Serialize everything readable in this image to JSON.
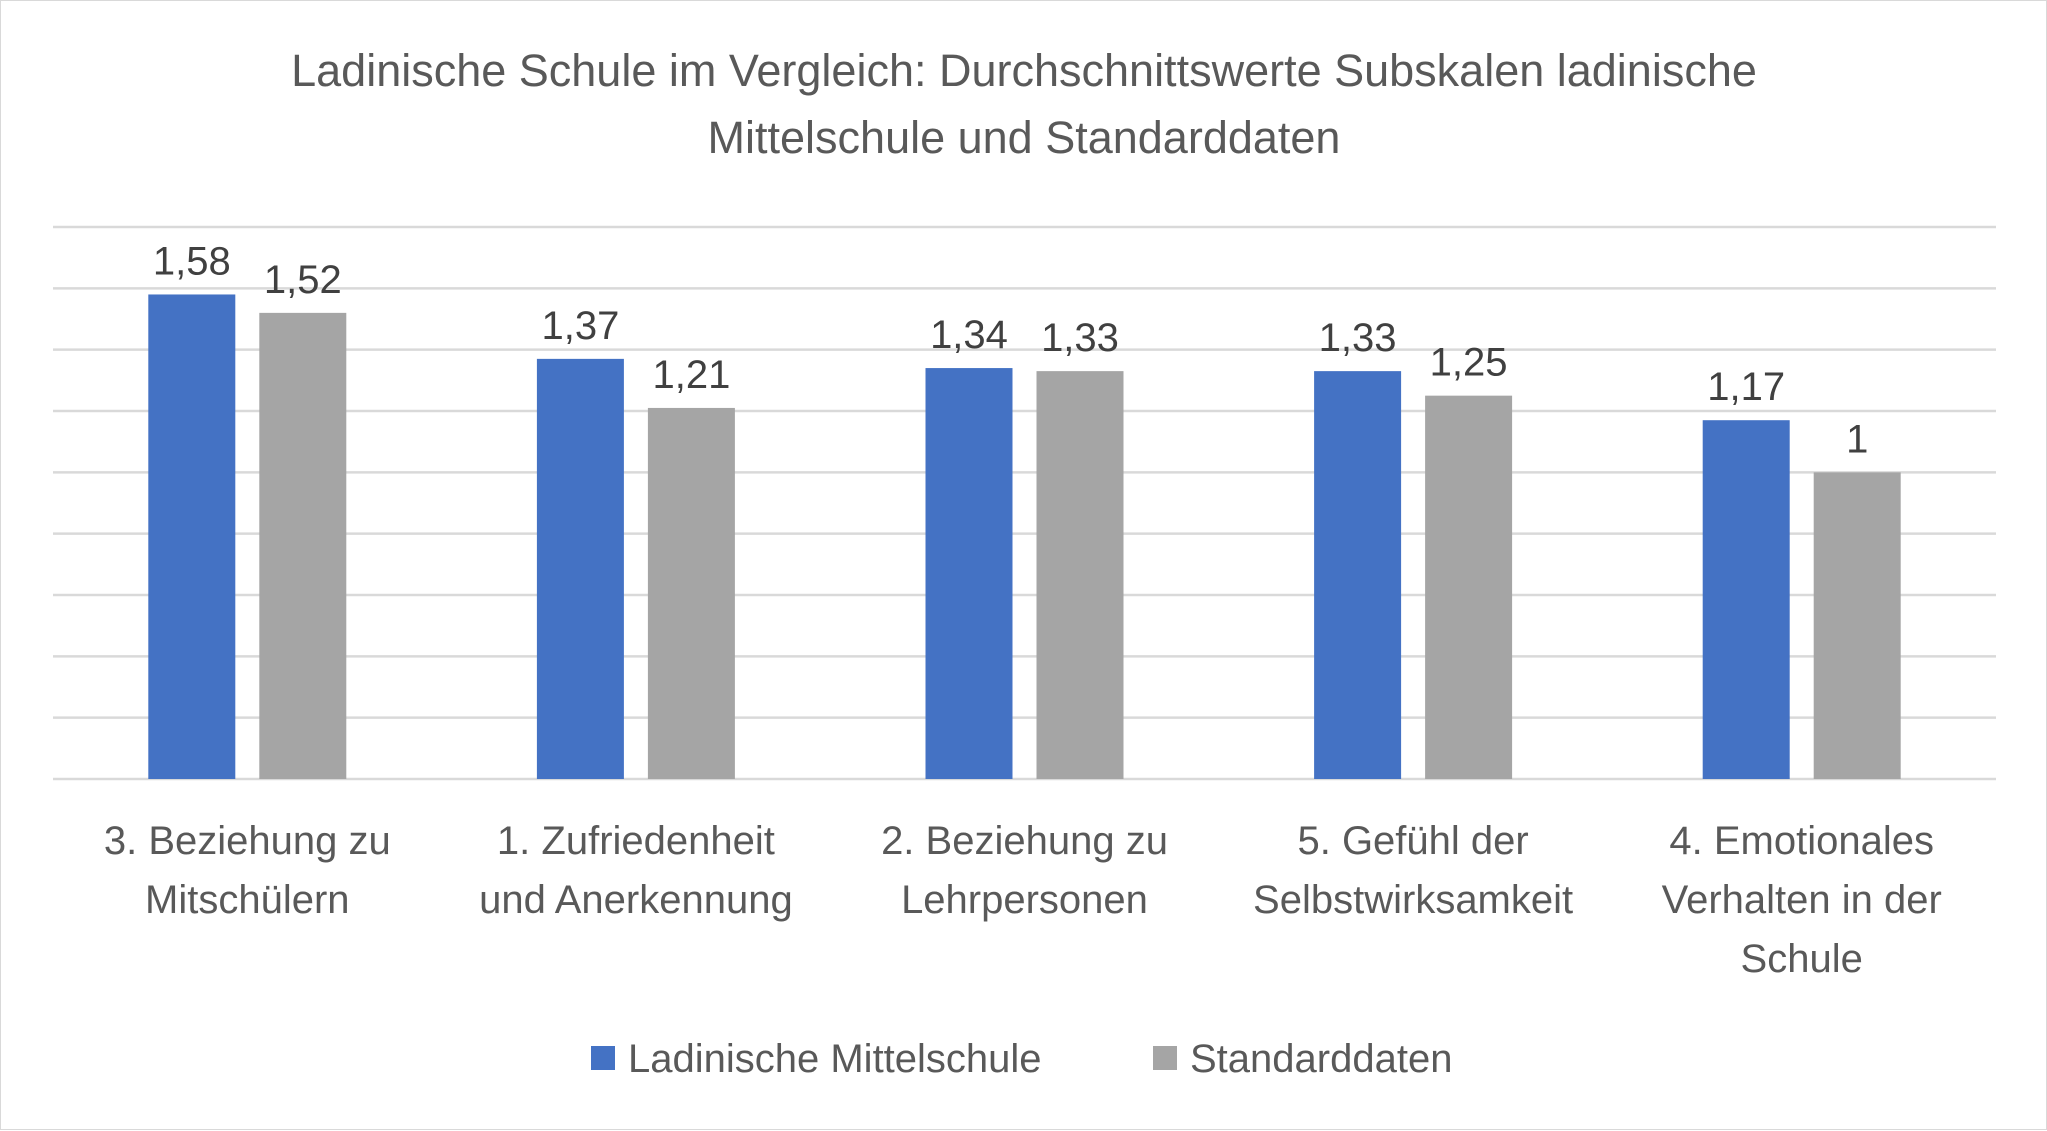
{
  "chart_data": {
    "type": "bar",
    "title_lines": [
      "Ladinische Schule im Vergleich: Durchschnittswerte Subskalen ladinische",
      "Mittelschule und Standarddaten"
    ],
    "categories": [
      "3. Beziehung zu Mitschülern",
      "1. Zufriedenheit und Anerkennung",
      "2. Beziehung zu Lehrpersonen",
      "5. Gefühl der Selbstwirksamkeit",
      "4. Emotionales Verhalten in der Schule"
    ],
    "category_lines": [
      [
        "3. Beziehung zu",
        "Mitschülern"
      ],
      [
        "1. Zufriedenheit",
        "und Anerkennung"
      ],
      [
        "2. Beziehung zu",
        "Lehrpersonen"
      ],
      [
        "5. Gefühl der",
        "Selbstwirksamkeit"
      ],
      [
        "4. Emotionales",
        "Verhalten in der",
        "Schule"
      ]
    ],
    "series": [
      {
        "name": "Ladinische Mittelschule",
        "color": "#4472c4",
        "values": [
          1.58,
          1.37,
          1.34,
          1.33,
          1.17
        ],
        "labels": [
          "1,58",
          "1,37",
          "1,34",
          "1,33",
          "1,17"
        ]
      },
      {
        "name": "Standarddaten",
        "color": "#a5a5a5",
        "values": [
          1.52,
          1.21,
          1.33,
          1.25,
          1.0
        ],
        "labels": [
          "1,52",
          "1,21",
          "1,33",
          "1,25",
          "1"
        ]
      }
    ],
    "ylim": [
      0,
      1.8
    ],
    "ystep": 0.2,
    "y_axis_labels_shown": false,
    "grid": true,
    "legend_position": "bottom"
  }
}
